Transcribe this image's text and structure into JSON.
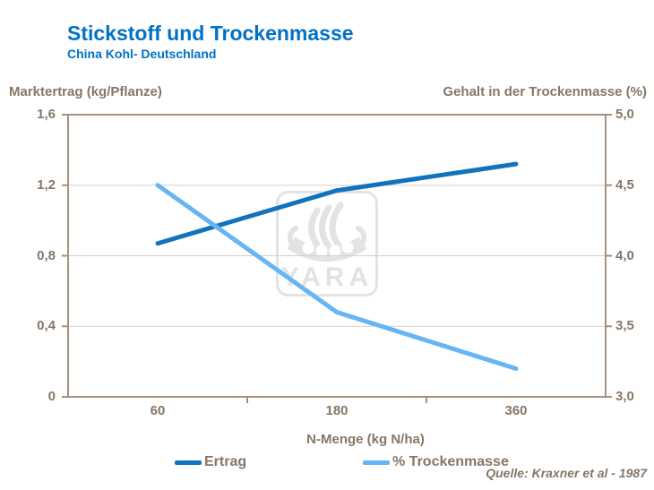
{
  "header": {
    "title": "Stickstoff und Trockenmasse",
    "subtitle": "China Kohl- Deutschland"
  },
  "watermark_label": "YARA",
  "source": "Quelle: Kraxner et al - 1987",
  "colors": {
    "title_blue": "#0072C6",
    "text_taupe": "#867767",
    "frame": "#A29284",
    "gridline": "#D8D0C8",
    "series_ertrag": "#1173BE",
    "series_trockenmasse": "#66B5F5",
    "watermark_gray": "#E3E3E3"
  },
  "chart_data": {
    "type": "line",
    "title": "Stickstoff und Trockenmasse",
    "subtitle": "China Kohl- Deutschland",
    "categories": [
      "60",
      "180",
      "360"
    ],
    "x_values": [
      60,
      180,
      360
    ],
    "xlabel": "N-Menge (kg N/ha)",
    "grid": true,
    "legend_position": "bottom",
    "y_left": {
      "label": "Marktertrag (kg/Pflanze)",
      "range": [
        0,
        1.6
      ],
      "tick_values": [
        0,
        0.4,
        0.8,
        1.2,
        1.6
      ],
      "ticks": [
        "0",
        "0,4",
        "0,8",
        "1,2",
        "1,6"
      ]
    },
    "y_right": {
      "label": "Gehalt in der Trockenmasse (%)",
      "range": [
        3.0,
        5.0
      ],
      "tick_values": [
        3.0,
        3.5,
        4.0,
        4.5,
        5.0
      ],
      "ticks": [
        "3,0",
        "3,5",
        "4,0",
        "4,5",
        "5,0"
      ]
    },
    "series": [
      {
        "name": "Ertrag",
        "axis": "left",
        "color": "#1173BE",
        "values": [
          0.87,
          1.17,
          1.32
        ]
      },
      {
        "name": "% Trockenmasse",
        "axis": "right",
        "color": "#66B5F5",
        "values": [
          4.5,
          3.6,
          3.2
        ]
      }
    ]
  }
}
